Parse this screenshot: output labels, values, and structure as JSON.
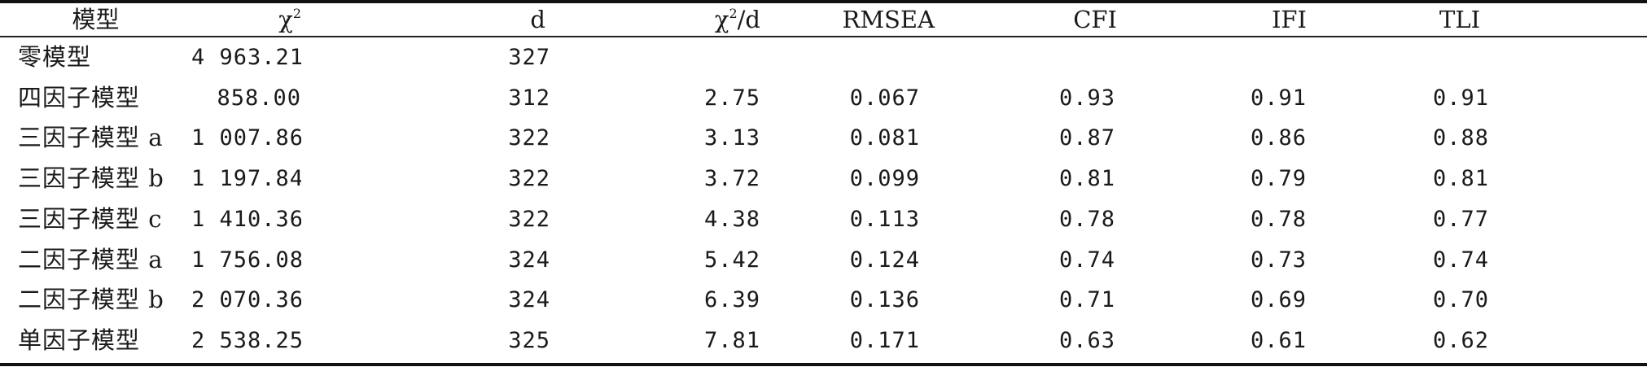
{
  "headers": {
    "model": "模型",
    "chi2": "χ",
    "chi2_sup": "2",
    "d": "d",
    "chi2d_pre": "χ",
    "chi2d_sup": "2",
    "chi2d_post": "/d",
    "rmsea": "RMSEA",
    "cfi": "CFI",
    "ifi": "IFI",
    "tli": "TLI"
  },
  "rows": [
    {
      "model": "零模型",
      "chi2": "4 963.21",
      "d": "327",
      "chi2d": "",
      "rmsea": "",
      "cfi": "",
      "ifi": "",
      "tli": ""
    },
    {
      "model": "四因子模型",
      "chi2": "858.00",
      "d": "312",
      "chi2d": "2.75",
      "rmsea": "0.067",
      "cfi": "0.93",
      "ifi": "0.91",
      "tli": "0.91"
    },
    {
      "model": "三因子模型 a",
      "chi2": "1 007.86",
      "d": "322",
      "chi2d": "3.13",
      "rmsea": "0.081",
      "cfi": "0.87",
      "ifi": "0.86",
      "tli": "0.88"
    },
    {
      "model": "三因子模型 b",
      "chi2": "1 197.84",
      "d": "322",
      "chi2d": "3.72",
      "rmsea": "0.099",
      "cfi": "0.81",
      "ifi": "0.79",
      "tli": "0.81"
    },
    {
      "model": "三因子模型 c",
      "chi2": "1 410.36",
      "d": "322",
      "chi2d": "4.38",
      "rmsea": "0.113",
      "cfi": "0.78",
      "ifi": "0.78",
      "tli": "0.77"
    },
    {
      "model": "二因子模型 a",
      "chi2": "1 756.08",
      "d": "324",
      "chi2d": "5.42",
      "rmsea": "0.124",
      "cfi": "0.74",
      "ifi": "0.73",
      "tli": "0.74"
    },
    {
      "model": "二因子模型 b",
      "chi2": "2 070.36",
      "d": "324",
      "chi2d": "6.39",
      "rmsea": "0.136",
      "cfi": "0.71",
      "ifi": "0.69",
      "tli": "0.70"
    },
    {
      "model": "单因子模型",
      "chi2": "2 538.25",
      "d": "325",
      "chi2d": "7.81",
      "rmsea": "0.171",
      "cfi": "0.63",
      "ifi": "0.61",
      "tli": "0.62"
    }
  ]
}
